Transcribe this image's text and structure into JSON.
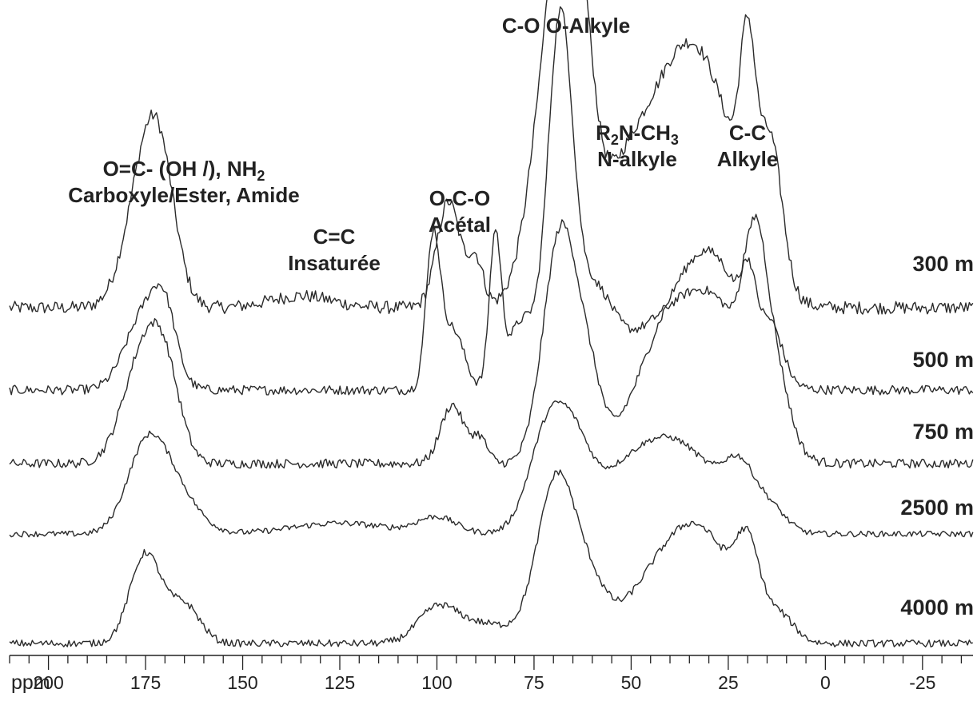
{
  "chart_data": {
    "type": "line",
    "xlabel": "ppm",
    "xlim": [
      210,
      -38
    ],
    "x_reversed": true,
    "x_ticks": [
      200,
      175,
      150,
      125,
      100,
      75,
      50,
      25,
      0,
      -25
    ],
    "x_tick_labels": [
      "200",
      "175",
      "150",
      "125",
      "100",
      "75",
      "50",
      "25",
      "0",
      "-25"
    ],
    "minor_tick_step": 5,
    "y_axis": "stacked offsets, no scale shown",
    "grid": false,
    "annotations": [
      {
        "id": "carboxyle",
        "lines": [
          "O=C- (OH /), NH<sub>2</sub>",
          "Carboxyle/Ester, Amide"
        ],
        "ppm": 175
      },
      {
        "id": "insaturee",
        "lines": [
          "C=C",
          "Insaturée"
        ],
        "ppm": 135
      },
      {
        "id": "acetal",
        "lines": [
          "O-C-O",
          "Acétal"
        ],
        "ppm": 97
      },
      {
        "id": "o-alkyle",
        "lines": [
          "C-O O-Alkyle"
        ],
        "ppm": 68
      },
      {
        "id": "n-alkyle",
        "lines": [
          "R<sub>2</sub>N-CH<sub>3</sub>",
          "N-alkyle"
        ],
        "ppm": 42
      },
      {
        "id": "alkyle",
        "lines": [
          "C-C",
          "Alkyle"
        ],
        "ppm": 20
      }
    ],
    "series": [
      {
        "name": "300 m",
        "peaks": [
          [
            175,
            0.55,
            5
          ],
          [
            171,
            0.35,
            4
          ],
          [
            135,
            0.05,
            8
          ],
          [
            97,
            0.45,
            3
          ],
          [
            90,
            0.2,
            2
          ],
          [
            70,
            1.0,
            5.5
          ],
          [
            66,
            0.8,
            4
          ],
          [
            62,
            0.3,
            3
          ],
          [
            50,
            0.6,
            10
          ],
          [
            35,
            0.75,
            8
          ],
          [
            20,
            0.7,
            2
          ],
          [
            14,
            0.55,
            3
          ],
          [
            25,
            0.4,
            8
          ]
        ]
      },
      {
        "name": "500 m",
        "peaks": [
          [
            175,
            0.45,
            5
          ],
          [
            170,
            0.3,
            3
          ],
          [
            101,
            0.85,
            1.8
          ],
          [
            96,
            0.35,
            3
          ],
          [
            85,
            0.85,
            1.5
          ],
          [
            78,
            0.4,
            4
          ],
          [
            69,
            1.35,
            3
          ],
          [
            67,
            0.8,
            3
          ],
          [
            60,
            0.5,
            5
          ],
          [
            40,
            0.4,
            12
          ],
          [
            28,
            0.3,
            8
          ],
          [
            20,
            0.45,
            2
          ],
          [
            14,
            0.3,
            3
          ]
        ]
      },
      {
        "name": "750 m",
        "peaks": [
          [
            176,
            0.6,
            5
          ],
          [
            170,
            0.45,
            4
          ],
          [
            96,
            0.35,
            3
          ],
          [
            89,
            0.15,
            2
          ],
          [
            70,
            0.75,
            4
          ],
          [
            66,
            0.85,
            4
          ],
          [
            60,
            0.3,
            3
          ],
          [
            44,
            0.3,
            8
          ],
          [
            32,
            0.95,
            10
          ],
          [
            18,
            0.6,
            2.5
          ],
          [
            14,
            0.5,
            4
          ],
          [
            25,
            0.35,
            7
          ]
        ]
      },
      {
        "name": "2500 m",
        "peaks": [
          [
            175,
            0.7,
            5
          ],
          [
            168,
            0.4,
            6
          ],
          [
            125,
            0.1,
            12
          ],
          [
            100,
            0.15,
            5
          ],
          [
            71,
            0.95,
            5
          ],
          [
            64,
            0.4,
            4
          ],
          [
            50,
            0.55,
            12
          ],
          [
            36,
            0.55,
            10
          ],
          [
            22,
            0.45,
            4
          ],
          [
            14,
            0.2,
            4
          ]
        ]
      },
      {
        "name": "4000 m",
        "peaks": [
          [
            175,
            0.7,
            4
          ],
          [
            165,
            0.3,
            4
          ],
          [
            100,
            0.25,
            5
          ],
          [
            88,
            0.15,
            8
          ],
          [
            69,
            1.3,
            5
          ],
          [
            60,
            0.3,
            4
          ],
          [
            40,
            0.6,
            10
          ],
          [
            30,
            0.5,
            8
          ],
          [
            20,
            0.55,
            3
          ],
          [
            12,
            0.2,
            4
          ]
        ]
      }
    ]
  }
}
